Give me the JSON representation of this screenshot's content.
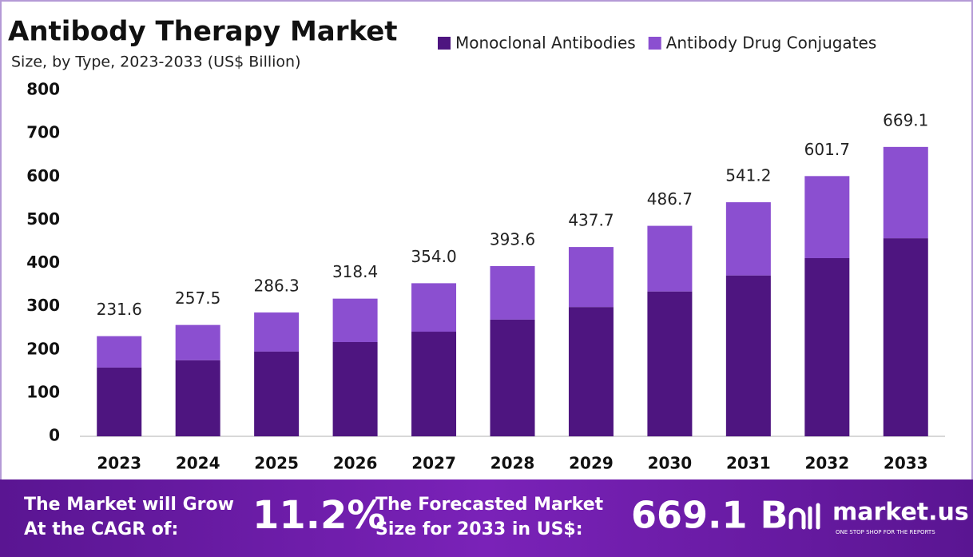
{
  "chart_data": {
    "type": "stacked-bar",
    "title": "Antibody Therapy Market",
    "subtitle": "Size, by Type, 2023-2033 (US$ Billion)",
    "categories": [
      "2023",
      "2024",
      "2025",
      "2026",
      "2027",
      "2028",
      "2029",
      "2030",
      "2031",
      "2032",
      "2033"
    ],
    "series": [
      {
        "name": "Monoclonal Antibodies",
        "color": "#4e1580",
        "values": [
          159,
          176,
          196,
          218,
          242,
          270,
          299,
          335,
          372,
          412,
          458
        ]
      },
      {
        "name": "Antibody Drug Conjugates",
        "color": "#8b4fd0",
        "values": [
          72.6,
          81.5,
          90.3,
          100.4,
          112,
          123.6,
          138.7,
          151.7,
          169.2,
          189.7,
          211.1
        ]
      }
    ],
    "totals": [
      231.6,
      257.5,
      286.3,
      318.4,
      354,
      393.6,
      437.7,
      486.7,
      541.2,
      601.7,
      669.1
    ],
    "total_labels": [
      "231.6",
      "257.5",
      "286.3",
      "318.4",
      "354.0",
      "393.6",
      "437.7",
      "486.7",
      "541.2",
      "601.7",
      "669.1"
    ],
    "ylim": [
      0,
      800
    ],
    "yticks": [
      0,
      100,
      200,
      300,
      400,
      500,
      600,
      700,
      800
    ],
    "grid": false,
    "legend": "top-right"
  },
  "footer": {
    "cagr_text": [
      "The Market will Grow",
      "At the CAGR of:"
    ],
    "cagr": "11.2%",
    "forecast_text": [
      "The Forecasted Market",
      "Size for 2033 in US$:"
    ],
    "forecast": "669.1 B",
    "brand": "market.us",
    "tagline": "ONE STOP SHOP FOR THE REPORTS"
  }
}
